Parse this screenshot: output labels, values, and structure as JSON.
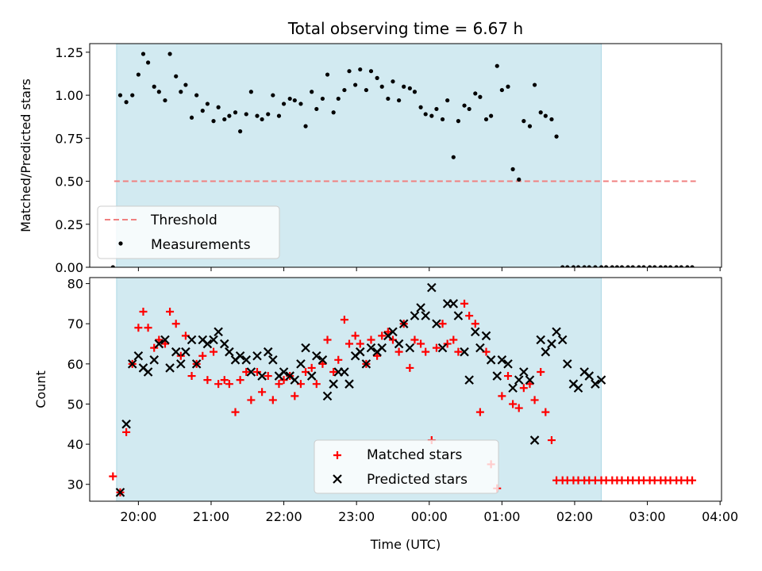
{
  "title": "Total observing time = 6.67 h",
  "xlabel": "Time (UTC)",
  "colors": {
    "shade": "#add8e6",
    "threshold": "#f08080",
    "measurement": "#000000",
    "matched": "#ff0000",
    "predicted": "#000000"
  },
  "chart_data": [
    {
      "type": "scatter",
      "ylabel": "Matched/Predicted stars",
      "ylim": [
        0,
        1.3
      ],
      "xlim": [
        19.33,
        4.02
      ],
      "ytick_values": [
        0.0,
        0.25,
        0.5,
        0.75,
        1.0,
        1.25
      ],
      "yticks": [
        "0.00",
        "0.25",
        "0.50",
        "0.75",
        "1.00",
        "1.25"
      ],
      "shaded_span": [
        "19:42",
        "02:22"
      ],
      "legend": {
        "placement": "lower-left",
        "entries": [
          {
            "label": "Threshold",
            "style": "dashed-line"
          },
          {
            "label": "Measurements",
            "style": "dot"
          }
        ]
      },
      "threshold": {
        "name": "Threshold",
        "y": 0.5,
        "x_start": "19:40",
        "x_end": "03:40"
      },
      "series": [
        {
          "name": "Measurements",
          "marker": "dot",
          "x": [
            "19:39",
            "19:45",
            "19:50",
            "19:55",
            "20:00",
            "20:04",
            "20:08",
            "20:13",
            "20:17",
            "20:22",
            "20:26",
            "20:31",
            "20:35",
            "20:39",
            "20:44",
            "20:48",
            "20:53",
            "20:57",
            "21:02",
            "21:06",
            "21:11",
            "21:15",
            "21:20",
            "21:24",
            "21:29",
            "21:33",
            "21:38",
            "21:42",
            "21:47",
            "21:51",
            "21:56",
            "22:00",
            "22:05",
            "22:09",
            "22:14",
            "22:18",
            "22:23",
            "22:27",
            "22:32",
            "22:36",
            "22:41",
            "22:45",
            "22:50",
            "22:54",
            "22:59",
            "23:03",
            "23:08",
            "23:12",
            "23:17",
            "23:21",
            "23:26",
            "23:30",
            "23:35",
            "23:39",
            "23:44",
            "23:48",
            "23:53",
            "23:57",
            "00:02",
            "00:06",
            "00:11",
            "00:15",
            "00:20",
            "00:24",
            "00:29",
            "00:33",
            "00:38",
            "00:42",
            "00:47",
            "00:51",
            "00:56",
            "01:00",
            "01:05",
            "01:09",
            "01:14",
            "01:18",
            "01:23",
            "01:27",
            "01:32",
            "01:36",
            "01:41",
            "01:45",
            "01:50",
            "01:54",
            "01:59",
            "02:03",
            "02:08",
            "02:12",
            "02:17",
            "02:22",
            "02:26",
            "02:31",
            "02:35",
            "02:39",
            "02:44",
            "02:48",
            "02:53",
            "02:57",
            "03:02",
            "03:06",
            "03:11",
            "03:15",
            "03:19",
            "03:24",
            "03:28",
            "03:33",
            "03:37"
          ],
          "y": [
            0.0,
            1.0,
            0.96,
            1.0,
            1.12,
            1.24,
            1.19,
            1.05,
            1.02,
            0.97,
            1.24,
            1.11,
            1.02,
            1.06,
            0.87,
            1.0,
            0.91,
            0.95,
            0.85,
            0.93,
            0.86,
            0.88,
            0.9,
            0.79,
            0.89,
            1.02,
            0.88,
            0.86,
            0.89,
            1.0,
            0.88,
            0.95,
            0.98,
            0.97,
            0.95,
            0.82,
            1.02,
            0.92,
            0.98,
            1.12,
            0.9,
            0.98,
            1.03,
            1.14,
            1.06,
            1.15,
            1.03,
            1.14,
            1.1,
            1.05,
            0.98,
            1.08,
            0.97,
            1.05,
            1.04,
            1.02,
            0.93,
            0.89,
            0.88,
            0.92,
            0.86,
            0.97,
            0.64,
            0.85,
            0.94,
            0.92,
            1.01,
            0.99,
            0.86,
            0.88,
            1.17,
            1.03,
            1.05,
            0.57,
            0.51,
            0.85,
            0.82,
            1.06,
            0.9,
            0.88,
            0.86,
            0.76,
            0.0,
            0.0,
            0.0,
            0.0,
            0.0,
            0.0,
            0.0,
            0.0,
            0.0,
            0.0,
            0.0,
            0.0,
            0.0,
            0.0,
            0.0,
            0.0,
            0.0,
            0.0,
            0.0,
            0.0,
            0.0,
            0.0,
            0.0,
            0.0,
            0.0
          ]
        }
      ]
    },
    {
      "type": "scatter",
      "ylabel": "Count",
      "ylim": [
        25.8,
        81.5
      ],
      "xlim": [
        19.33,
        4.02
      ],
      "ytick_values": [
        30,
        40,
        50,
        60,
        70,
        80
      ],
      "yticks": [
        "30",
        "40",
        "50",
        "60",
        "70",
        "80"
      ],
      "xticks": [
        "20:00",
        "21:00",
        "22:00",
        "23:00",
        "00:00",
        "01:00",
        "02:00",
        "03:00",
        "04:00"
      ],
      "shaded_span": [
        "19:42",
        "02:22"
      ],
      "legend": {
        "placement": "lower-center",
        "entries": [
          {
            "label": "Matched stars",
            "style": "plus"
          },
          {
            "label": "Predicted stars",
            "style": "x"
          }
        ]
      },
      "series": [
        {
          "name": "Matched stars",
          "marker": "plus",
          "x": [
            "19:39",
            "19:45",
            "19:50",
            "19:55",
            "20:00",
            "20:04",
            "20:08",
            "20:13",
            "20:17",
            "20:22",
            "20:26",
            "20:31",
            "20:35",
            "20:39",
            "20:44",
            "20:48",
            "20:53",
            "20:57",
            "21:02",
            "21:06",
            "21:11",
            "21:15",
            "21:20",
            "21:24",
            "21:29",
            "21:33",
            "21:38",
            "21:42",
            "21:47",
            "21:51",
            "21:56",
            "22:00",
            "22:05",
            "22:09",
            "22:14",
            "22:18",
            "22:23",
            "22:27",
            "22:32",
            "22:36",
            "22:41",
            "22:45",
            "22:50",
            "22:54",
            "22:59",
            "23:03",
            "23:08",
            "23:12",
            "23:17",
            "23:21",
            "23:26",
            "23:30",
            "23:35",
            "23:39",
            "23:44",
            "23:48",
            "23:53",
            "23:57",
            "00:02",
            "00:06",
            "00:11",
            "00:15",
            "00:20",
            "00:24",
            "00:29",
            "00:33",
            "00:38",
            "00:42",
            "00:47",
            "00:51",
            "00:56",
            "01:00",
            "01:05",
            "01:09",
            "01:14",
            "01:18",
            "01:23",
            "01:27",
            "01:32",
            "01:36",
            "01:41",
            "01:45",
            "01:50",
            "01:54",
            "01:59",
            "02:03",
            "02:08",
            "02:12",
            "02:17",
            "02:22",
            "02:26",
            "02:31",
            "02:35",
            "02:39",
            "02:44",
            "02:48",
            "02:53",
            "02:57",
            "03:02",
            "03:06",
            "03:11",
            "03:15",
            "03:19",
            "03:24",
            "03:28",
            "03:33",
            "03:37"
          ],
          "y": [
            32,
            28,
            43,
            60,
            69,
            73,
            69,
            64,
            66,
            65,
            73,
            70,
            62,
            67,
            57,
            60,
            62,
            56,
            63,
            55,
            56,
            55,
            48,
            56,
            58,
            51,
            58,
            53,
            57,
            51,
            55,
            56,
            57,
            52,
            55,
            58,
            59,
            55,
            60,
            66,
            58,
            61,
            71,
            65,
            67,
            65,
            60,
            66,
            62,
            67,
            68,
            66,
            63,
            70,
            59,
            66,
            65,
            63,
            41,
            64,
            70,
            65,
            66,
            63,
            75,
            72,
            70,
            48,
            63,
            35,
            29,
            52,
            57,
            50,
            49,
            54,
            55,
            51,
            58,
            48,
            41,
            31,
            31,
            31,
            31,
            31,
            31,
            31,
            31,
            31,
            31,
            31,
            31,
            31,
            31,
            31,
            31,
            31,
            31,
            31,
            31,
            31,
            31,
            31,
            31,
            31,
            31
          ]
        },
        {
          "name": "Predicted stars",
          "marker": "x",
          "x": [
            "19:45",
            "19:50",
            "19:55",
            "20:00",
            "20:04",
            "20:08",
            "20:13",
            "20:17",
            "20:22",
            "20:26",
            "20:31",
            "20:35",
            "20:39",
            "20:44",
            "20:48",
            "20:53",
            "20:57",
            "21:02",
            "21:06",
            "21:11",
            "21:15",
            "21:20",
            "21:24",
            "21:29",
            "21:33",
            "21:38",
            "21:42",
            "21:47",
            "21:51",
            "21:56",
            "22:00",
            "22:05",
            "22:09",
            "22:14",
            "22:18",
            "22:23",
            "22:27",
            "22:32",
            "22:36",
            "22:41",
            "22:45",
            "22:50",
            "22:54",
            "22:59",
            "23:03",
            "23:08",
            "23:12",
            "23:17",
            "23:21",
            "23:26",
            "23:30",
            "23:35",
            "23:39",
            "23:44",
            "23:48",
            "23:53",
            "23:57",
            "00:02",
            "00:06",
            "00:11",
            "00:15",
            "00:20",
            "00:24",
            "00:29",
            "00:33",
            "00:38",
            "00:42",
            "00:47",
            "00:51",
            "00:56",
            "01:00",
            "01:05",
            "01:09",
            "01:14",
            "01:18",
            "01:23",
            "01:27",
            "01:32",
            "01:36",
            "01:41",
            "01:45",
            "01:50",
            "01:54",
            "01:59",
            "02:03",
            "02:08",
            "02:12",
            "02:17",
            "02:22"
          ],
          "y": [
            28,
            45,
            60,
            62,
            59,
            58,
            61,
            65,
            66,
            59,
            63,
            60,
            63,
            66,
            60,
            66,
            65,
            66,
            68,
            65,
            63,
            61,
            62,
            61,
            58,
            62,
            57,
            63,
            61,
            57,
            58,
            57,
            56,
            60,
            64,
            57,
            62,
            61,
            52,
            55,
            58,
            58,
            55,
            62,
            63,
            60,
            64,
            63,
            64,
            67,
            68,
            65,
            70,
            64,
            72,
            74,
            72,
            79,
            70,
            64,
            75,
            75,
            72,
            63,
            56,
            68,
            64,
            67,
            61,
            57,
            61,
            60,
            54,
            56,
            58,
            56,
            41,
            66,
            63,
            65,
            68,
            66,
            60,
            55,
            54,
            58,
            57,
            55,
            56
          ]
        }
      ]
    }
  ]
}
